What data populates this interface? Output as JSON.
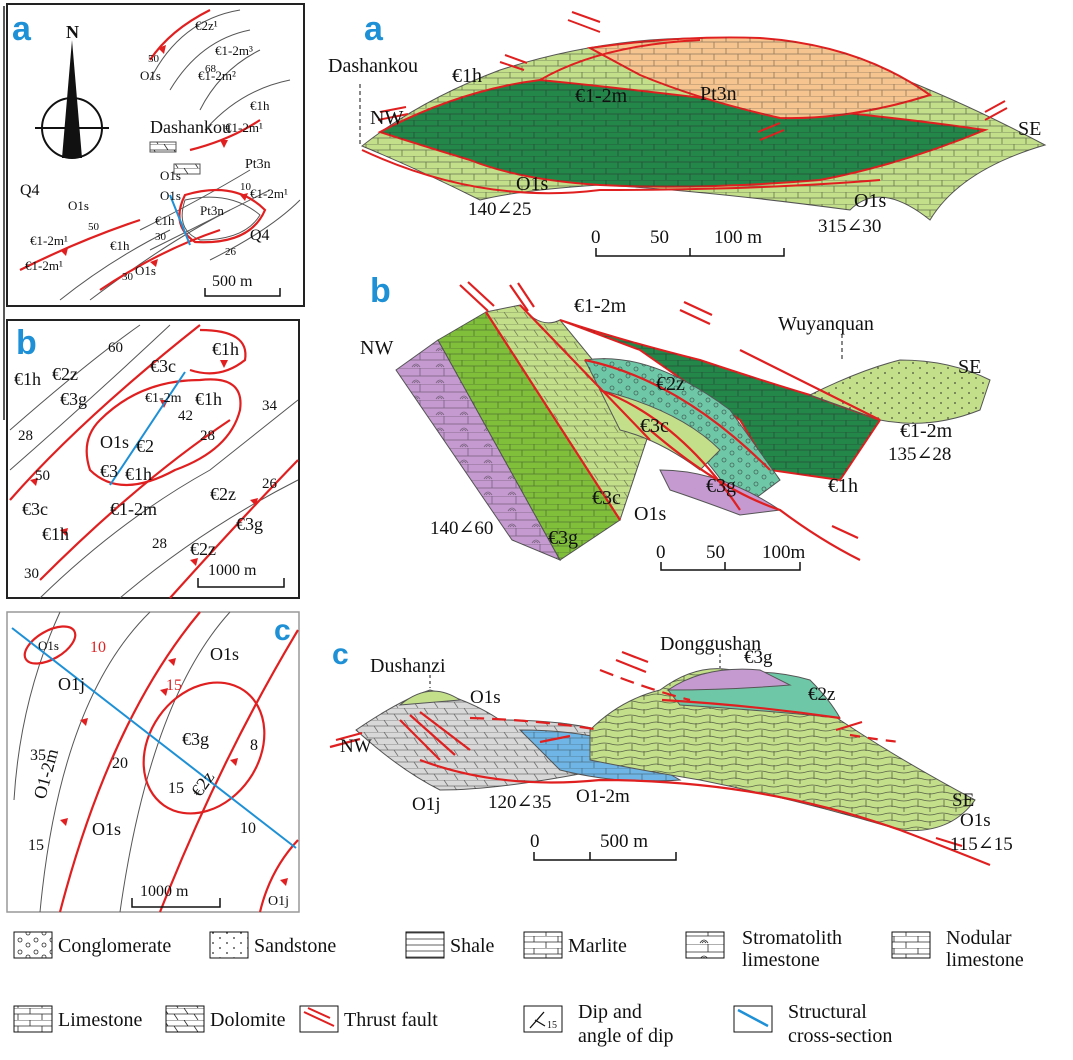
{
  "panels": {
    "a": {
      "map_label": "a",
      "section_label": "a",
      "north": "N",
      "map_place": "Dashankou",
      "map_unit_pt": "Pt3n",
      "map_q1": "Q4",
      "map_q2": "Q4",
      "map_units": [
        "€2z¹",
        "€1-2m³",
        "€1-2m²",
        "€1h",
        "€1-2m¹",
        "€1-2m¹",
        "O1s",
        "O1s",
        "O1s",
        "O1s",
        "€1h",
        "€1h",
        "Pt3n",
        "€1-2m¹",
        "€1-2m¹",
        "O1s"
      ],
      "map_dips": [
        "50",
        "68",
        "10",
        "30",
        "50",
        "26",
        "30"
      ],
      "map_scale": "500 m",
      "sec_place": "Dashankou",
      "sec_nw": "NW",
      "sec_se": "SE",
      "sec_units": [
        "€1h",
        "€1-2m",
        "Pt3n",
        "O1s",
        "O1s"
      ],
      "sec_att1": "140∠25",
      "sec_att2": "315∠30",
      "scale_0": "0",
      "scale_1": "50",
      "scale_2": "100  m"
    },
    "b": {
      "map_label": "b",
      "section_label": "b",
      "map_units": [
        "€1h",
        "€2z",
        "€3g",
        "€3c",
        "€1h",
        "€1-2m",
        "€1h",
        "O1s",
        "€2",
        "€3",
        "€1h",
        "€3c",
        "€1h",
        "€1-2m",
        "€2z",
        "€2z",
        "€3g"
      ],
      "map_dips": [
        "60",
        "28",
        "50",
        "42",
        "28",
        "34",
        "26",
        "28",
        "30"
      ],
      "map_scale": "1000  m",
      "sec_nw": "NW",
      "sec_se": "SE",
      "sec_place": "Wuyanquan",
      "sec_units": [
        "€1-2m",
        "€2z",
        "€3c",
        "€1-2m",
        "€1h",
        "€3g",
        "O1s",
        "€3c",
        "€3g"
      ],
      "sec_att1": "135∠28",
      "sec_att2": "140∠60",
      "scale_0": "0",
      "scale_1": "50",
      "scale_2": "100m"
    },
    "c": {
      "map_label": "c",
      "section_label": "c",
      "map_units": [
        "O1s",
        "O1s",
        "O1j",
        "€3g",
        "O1-2m",
        "€2z",
        "O1s",
        "O1j"
      ],
      "map_dips": [
        "10",
        "15",
        "35",
        "20",
        "8",
        "15",
        "10",
        "15"
      ],
      "map_scale": "1000 m",
      "sec_place1": "Dushanzi",
      "sec_place2": "Donggushan",
      "sec_nw": "NW",
      "sec_se": "SE",
      "sec_units": [
        "O1s",
        "€3g",
        "€2z",
        "O1j",
        "O1-2m",
        "O1s"
      ],
      "sec_att1": "120∠35",
      "sec_att2": "115∠15",
      "scale_0": "0",
      "scale_1": "500 m"
    }
  },
  "legend": {
    "conglomerate": "Conglomerate",
    "sandstone": "Sandstone",
    "shale": "Shale",
    "marlite": "Marlite",
    "stromatolith_1": "Stromatolith",
    "stromatolith_2": "limestone",
    "nodular_1": "Nodular",
    "nodular_2": "limestone",
    "limestone": "Limestone",
    "dolomite": "Dolomite",
    "thrust": "Thrust fault",
    "dip_1": "Dip and",
    "dip_2": "angle of dip",
    "dip_num": "15",
    "xsec_1": "Structural",
    "xsec_2": "cross-section"
  },
  "colors": {
    "fault": "#e02020",
    "xsec_line": "#1e90d6",
    "light_green": "#c3df8a",
    "dark_green": "#23874a",
    "mid_green": "#7fbf3a",
    "orange": "#f5c48f",
    "purple": "#c59ad0",
    "teal": "#6ec8a8",
    "gray": "#d8d8d8",
    "blue": "#6fb6e6"
  }
}
